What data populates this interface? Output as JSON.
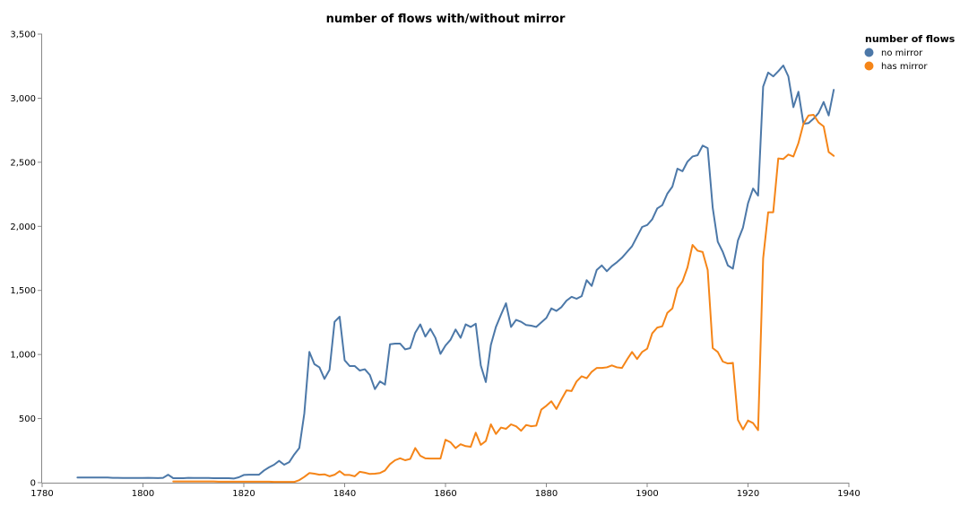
{
  "chart_data": {
    "type": "line",
    "title": "number of flows with/without mirror",
    "xlabel": "",
    "ylabel": "",
    "xlim": [
      1780,
      1940
    ],
    "ylim": [
      0,
      3500
    ],
    "x_ticks": [
      "1780",
      "1800",
      "1820",
      "1840",
      "1860",
      "1880",
      "1900",
      "1920",
      "1940"
    ],
    "y_ticks": [
      "0",
      "500",
      "1,000",
      "1,500",
      "2,000",
      "2,500",
      "3,000",
      "3,500"
    ],
    "grid": false,
    "legend": {
      "title": "number of flows",
      "position": "top-right"
    },
    "series": [
      {
        "name": "no mirror",
        "color": "#4c78a8",
        "points": [
          [
            1787,
            40
          ],
          [
            1788,
            40
          ],
          [
            1789,
            40
          ],
          [
            1790,
            40
          ],
          [
            1791,
            40
          ],
          [
            1792,
            40
          ],
          [
            1793,
            40
          ],
          [
            1794,
            38
          ],
          [
            1795,
            38
          ],
          [
            1796,
            37
          ],
          [
            1797,
            37
          ],
          [
            1798,
            37
          ],
          [
            1799,
            37
          ],
          [
            1800,
            37
          ],
          [
            1801,
            38
          ],
          [
            1802,
            37
          ],
          [
            1803,
            36
          ],
          [
            1804,
            38
          ],
          [
            1805,
            62
          ],
          [
            1806,
            35
          ],
          [
            1807,
            35
          ],
          [
            1808,
            35
          ],
          [
            1809,
            38
          ],
          [
            1810,
            37
          ],
          [
            1811,
            37
          ],
          [
            1812,
            37
          ],
          [
            1813,
            37
          ],
          [
            1814,
            35
          ],
          [
            1815,
            35
          ],
          [
            1816,
            35
          ],
          [
            1817,
            35
          ],
          [
            1818,
            32
          ],
          [
            1819,
            42
          ],
          [
            1820,
            60
          ],
          [
            1821,
            62
          ],
          [
            1822,
            62
          ],
          [
            1823,
            62
          ],
          [
            1824,
            95
          ],
          [
            1825,
            120
          ],
          [
            1826,
            140
          ],
          [
            1827,
            170
          ],
          [
            1828,
            140
          ],
          [
            1829,
            160
          ],
          [
            1830,
            220
          ],
          [
            1831,
            270
          ],
          [
            1832,
            540
          ],
          [
            1833,
            1020
          ],
          [
            1834,
            925
          ],
          [
            1835,
            900
          ],
          [
            1836,
            810
          ],
          [
            1837,
            880
          ],
          [
            1838,
            1255
          ],
          [
            1839,
            1295
          ],
          [
            1840,
            955
          ],
          [
            1841,
            910
          ],
          [
            1842,
            910
          ],
          [
            1843,
            875
          ],
          [
            1844,
            885
          ],
          [
            1845,
            840
          ],
          [
            1846,
            730
          ],
          [
            1847,
            790
          ],
          [
            1848,
            765
          ],
          [
            1849,
            1080
          ],
          [
            1850,
            1085
          ],
          [
            1851,
            1085
          ],
          [
            1852,
            1040
          ],
          [
            1853,
            1050
          ],
          [
            1854,
            1170
          ],
          [
            1855,
            1235
          ],
          [
            1856,
            1140
          ],
          [
            1857,
            1200
          ],
          [
            1858,
            1130
          ],
          [
            1859,
            1005
          ],
          [
            1860,
            1070
          ],
          [
            1861,
            1115
          ],
          [
            1862,
            1195
          ],
          [
            1863,
            1130
          ],
          [
            1864,
            1235
          ],
          [
            1865,
            1215
          ],
          [
            1866,
            1240
          ],
          [
            1867,
            915
          ],
          [
            1868,
            785
          ],
          [
            1869,
            1075
          ],
          [
            1870,
            1215
          ],
          [
            1871,
            1310
          ],
          [
            1872,
            1400
          ],
          [
            1873,
            1215
          ],
          [
            1874,
            1270
          ],
          [
            1875,
            1255
          ],
          [
            1876,
            1230
          ],
          [
            1877,
            1225
          ],
          [
            1878,
            1215
          ],
          [
            1879,
            1250
          ],
          [
            1880,
            1285
          ],
          [
            1881,
            1360
          ],
          [
            1882,
            1340
          ],
          [
            1883,
            1370
          ],
          [
            1884,
            1420
          ],
          [
            1885,
            1450
          ],
          [
            1886,
            1435
          ],
          [
            1887,
            1455
          ],
          [
            1888,
            1580
          ],
          [
            1889,
            1535
          ],
          [
            1890,
            1660
          ],
          [
            1891,
            1695
          ],
          [
            1892,
            1650
          ],
          [
            1893,
            1690
          ],
          [
            1894,
            1720
          ],
          [
            1895,
            1755
          ],
          [
            1896,
            1800
          ],
          [
            1897,
            1845
          ],
          [
            1898,
            1920
          ],
          [
            1899,
            1995
          ],
          [
            1900,
            2010
          ],
          [
            1901,
            2055
          ],
          [
            1902,
            2140
          ],
          [
            1903,
            2165
          ],
          [
            1904,
            2255
          ],
          [
            1905,
            2310
          ],
          [
            1906,
            2450
          ],
          [
            1907,
            2430
          ],
          [
            1908,
            2505
          ],
          [
            1909,
            2545
          ],
          [
            1910,
            2555
          ],
          [
            1911,
            2630
          ],
          [
            1912,
            2610
          ],
          [
            1913,
            2145
          ],
          [
            1914,
            1880
          ],
          [
            1915,
            1800
          ],
          [
            1916,
            1695
          ],
          [
            1917,
            1670
          ],
          [
            1918,
            1890
          ],
          [
            1919,
            1990
          ],
          [
            1920,
            2180
          ],
          [
            1921,
            2295
          ],
          [
            1922,
            2240
          ],
          [
            1923,
            3090
          ],
          [
            1924,
            3200
          ],
          [
            1925,
            3170
          ],
          [
            1926,
            3210
          ],
          [
            1927,
            3255
          ],
          [
            1928,
            3170
          ],
          [
            1929,
            2930
          ],
          [
            1930,
            3050
          ],
          [
            1931,
            2800
          ],
          [
            1932,
            2805
          ],
          [
            1933,
            2840
          ],
          [
            1934,
            2885
          ],
          [
            1935,
            2970
          ],
          [
            1936,
            2865
          ],
          [
            1937,
            3065
          ]
        ]
      },
      {
        "name": "has mirror",
        "color": "#f58518",
        "points": [
          [
            1806,
            10
          ],
          [
            1807,
            10
          ],
          [
            1808,
            10
          ],
          [
            1809,
            10
          ],
          [
            1810,
            10
          ],
          [
            1811,
            10
          ],
          [
            1812,
            10
          ],
          [
            1813,
            10
          ],
          [
            1814,
            10
          ],
          [
            1815,
            8
          ],
          [
            1816,
            8
          ],
          [
            1817,
            8
          ],
          [
            1818,
            8
          ],
          [
            1819,
            8
          ],
          [
            1820,
            8
          ],
          [
            1821,
            8
          ],
          [
            1822,
            8
          ],
          [
            1823,
            8
          ],
          [
            1824,
            8
          ],
          [
            1825,
            8
          ],
          [
            1826,
            6
          ],
          [
            1827,
            6
          ],
          [
            1828,
            6
          ],
          [
            1829,
            6
          ],
          [
            1830,
            6
          ],
          [
            1831,
            20
          ],
          [
            1832,
            45
          ],
          [
            1833,
            75
          ],
          [
            1834,
            70
          ],
          [
            1835,
            62
          ],
          [
            1836,
            65
          ],
          [
            1837,
            50
          ],
          [
            1838,
            62
          ],
          [
            1839,
            90
          ],
          [
            1840,
            60
          ],
          [
            1841,
            60
          ],
          [
            1842,
            50
          ],
          [
            1843,
            85
          ],
          [
            1844,
            78
          ],
          [
            1845,
            68
          ],
          [
            1846,
            70
          ],
          [
            1847,
            75
          ],
          [
            1848,
            95
          ],
          [
            1849,
            145
          ],
          [
            1850,
            175
          ],
          [
            1851,
            190
          ],
          [
            1852,
            175
          ],
          [
            1853,
            185
          ],
          [
            1854,
            270
          ],
          [
            1855,
            210
          ],
          [
            1856,
            190
          ],
          [
            1857,
            188
          ],
          [
            1858,
            188
          ],
          [
            1859,
            188
          ],
          [
            1860,
            335
          ],
          [
            1861,
            315
          ],
          [
            1862,
            270
          ],
          [
            1863,
            300
          ],
          [
            1864,
            285
          ],
          [
            1865,
            280
          ],
          [
            1866,
            390
          ],
          [
            1867,
            295
          ],
          [
            1868,
            325
          ],
          [
            1869,
            455
          ],
          [
            1870,
            380
          ],
          [
            1871,
            430
          ],
          [
            1872,
            420
          ],
          [
            1873,
            455
          ],
          [
            1874,
            440
          ],
          [
            1875,
            405
          ],
          [
            1876,
            450
          ],
          [
            1877,
            440
          ],
          [
            1878,
            445
          ],
          [
            1879,
            570
          ],
          [
            1880,
            600
          ],
          [
            1881,
            635
          ],
          [
            1882,
            575
          ],
          [
            1883,
            650
          ],
          [
            1884,
            720
          ],
          [
            1885,
            715
          ],
          [
            1886,
            790
          ],
          [
            1887,
            830
          ],
          [
            1888,
            815
          ],
          [
            1889,
            865
          ],
          [
            1890,
            895
          ],
          [
            1891,
            895
          ],
          [
            1892,
            900
          ],
          [
            1893,
            915
          ],
          [
            1894,
            900
          ],
          [
            1895,
            895
          ],
          [
            1896,
            960
          ],
          [
            1897,
            1020
          ],
          [
            1898,
            965
          ],
          [
            1899,
            1020
          ],
          [
            1900,
            1045
          ],
          [
            1901,
            1165
          ],
          [
            1902,
            1210
          ],
          [
            1903,
            1220
          ],
          [
            1904,
            1325
          ],
          [
            1905,
            1360
          ],
          [
            1906,
            1515
          ],
          [
            1907,
            1570
          ],
          [
            1908,
            1680
          ],
          [
            1909,
            1855
          ],
          [
            1910,
            1810
          ],
          [
            1911,
            1800
          ],
          [
            1912,
            1660
          ],
          [
            1913,
            1050
          ],
          [
            1914,
            1020
          ],
          [
            1915,
            945
          ],
          [
            1916,
            930
          ],
          [
            1917,
            935
          ],
          [
            1918,
            490
          ],
          [
            1919,
            415
          ],
          [
            1920,
            485
          ],
          [
            1921,
            465
          ],
          [
            1922,
            410
          ],
          [
            1923,
            1750
          ],
          [
            1924,
            2110
          ],
          [
            1925,
            2110
          ],
          [
            1926,
            2530
          ],
          [
            1927,
            2525
          ],
          [
            1928,
            2560
          ],
          [
            1929,
            2545
          ],
          [
            1930,
            2650
          ],
          [
            1931,
            2800
          ],
          [
            1932,
            2865
          ],
          [
            1933,
            2870
          ],
          [
            1934,
            2810
          ],
          [
            1935,
            2780
          ],
          [
            1936,
            2580
          ],
          [
            1937,
            2550
          ]
        ]
      }
    ]
  }
}
